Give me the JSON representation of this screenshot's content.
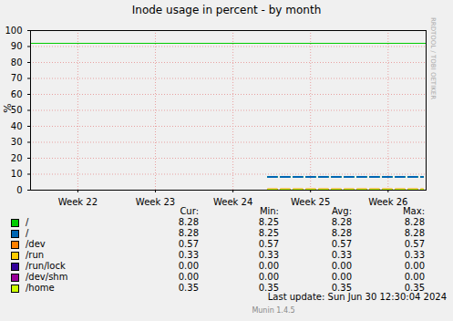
{
  "chart_data": {
    "type": "line",
    "title": "Inode usage in percent - by month",
    "y_label": "%",
    "x": [
      24.45,
      26.45
    ],
    "xlim": [
      21.39,
      26.49
    ],
    "xticks": [
      {
        "value": 22,
        "label": "Week 22"
      },
      {
        "value": 23,
        "label": "Week 23"
      },
      {
        "value": 24,
        "label": "Week 24"
      },
      {
        "value": 25,
        "label": "Week 25"
      },
      {
        "value": 26,
        "label": "Week 26"
      }
    ],
    "ylim": [
      0,
      100
    ],
    "yticks": [
      0,
      10,
      20,
      30,
      40,
      50,
      60,
      70,
      80,
      90,
      100
    ],
    "grid": true,
    "reference_lines": [
      {
        "y": 92,
        "color": "#00cc00"
      }
    ],
    "stats_columns": [
      "Cur:",
      "Min:",
      "Avg:",
      "Max:"
    ],
    "series": [
      {
        "name": "/",
        "color": "#00cc00",
        "line_style": "dashed",
        "values": [
          8.28,
          8.28
        ],
        "stats": [
          8.28,
          8.25,
          8.28,
          8.28
        ]
      },
      {
        "name": "/",
        "color": "#0066b3",
        "line_style": "dashed",
        "values": [
          8.28,
          8.28
        ],
        "stats": [
          8.28,
          8.25,
          8.28,
          8.28
        ]
      },
      {
        "name": "/dev",
        "color": "#ff8000",
        "line_style": "dashed",
        "values": [
          0.57,
          0.57
        ],
        "stats": [
          0.57,
          0.57,
          0.57,
          0.57
        ]
      },
      {
        "name": "/run",
        "color": "#ffcc00",
        "line_style": "dashed",
        "values": [
          0.33,
          0.33
        ],
        "stats": [
          0.33,
          0.33,
          0.33,
          0.33
        ]
      },
      {
        "name": "/run/lock",
        "color": "#330099",
        "line_style": "dashed",
        "values": [
          0,
          0
        ],
        "stats": [
          0,
          0,
          0,
          0
        ]
      },
      {
        "name": "/dev/shm",
        "color": "#990099",
        "line_style": "dashed",
        "values": [
          0,
          0
        ],
        "stats": [
          0,
          0,
          0,
          0
        ]
      },
      {
        "name": "/home",
        "color": "#ccff00",
        "line_style": "dashed",
        "values": [
          0.35,
          0.35
        ],
        "stats": [
          0.35,
          0.35,
          0.35,
          0.35
        ]
      }
    ],
    "last_update": "Last update:  Sun Jun 30 12:30:04 2024",
    "footer": "Munin 1.4.5",
    "side_text": "RRDTOOL / TOBI OETIKER"
  }
}
